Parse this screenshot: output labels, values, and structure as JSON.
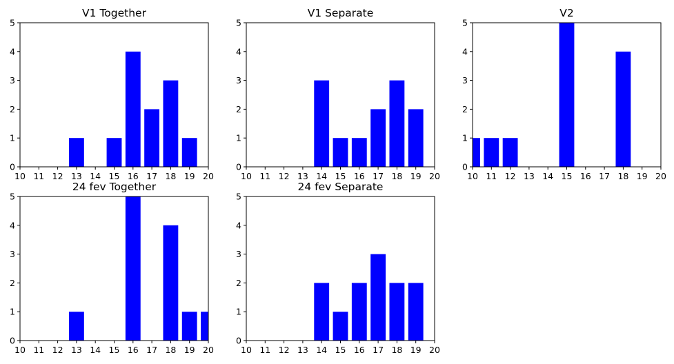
{
  "chart_data": [
    {
      "type": "bar",
      "title": "V1 Together",
      "x": [
        13,
        15,
        16,
        17,
        18,
        19
      ],
      "values": [
        1,
        1,
        4,
        2,
        3,
        1
      ],
      "xlim": [
        10,
        20
      ],
      "ylim": [
        0,
        5
      ],
      "xticks": [
        "10",
        "11",
        "12",
        "13",
        "14",
        "15",
        "16",
        "17",
        "18",
        "19",
        "20"
      ],
      "yticks": [
        "0",
        "1",
        "2",
        "3",
        "4",
        "5"
      ],
      "bar_color": "#0000ff",
      "grid": false
    },
    {
      "type": "bar",
      "title": "V1 Separate",
      "x": [
        14,
        15,
        16,
        17,
        18,
        19
      ],
      "values": [
        3,
        1,
        1,
        2,
        3,
        2
      ],
      "xlim": [
        10,
        20
      ],
      "ylim": [
        0,
        5
      ],
      "xticks": [
        "10",
        "11",
        "12",
        "13",
        "14",
        "15",
        "16",
        "17",
        "18",
        "19",
        "20"
      ],
      "yticks": [
        "0",
        "1",
        "2",
        "3",
        "4",
        "5"
      ],
      "bar_color": "#0000ff",
      "grid": false
    },
    {
      "type": "bar",
      "title": "V2",
      "x": [
        10,
        11,
        12,
        15,
        18
      ],
      "values": [
        1,
        1,
        1,
        5,
        4
      ],
      "xlim": [
        10,
        20
      ],
      "ylim": [
        0,
        5
      ],
      "xticks": [
        "10",
        "11",
        "12",
        "13",
        "14",
        "15",
        "16",
        "17",
        "18",
        "19",
        "20"
      ],
      "yticks": [
        "0",
        "1",
        "2",
        "3",
        "4",
        "5"
      ],
      "bar_color": "#0000ff",
      "grid": false
    },
    {
      "type": "bar",
      "title": "24 fev Together",
      "x": [
        13,
        16,
        18,
        19,
        20
      ],
      "values": [
        1,
        5,
        4,
        1,
        1
      ],
      "xlim": [
        10,
        20
      ],
      "ylim": [
        0,
        5
      ],
      "xticks": [
        "10",
        "11",
        "12",
        "13",
        "14",
        "15",
        "16",
        "17",
        "18",
        "19",
        "20"
      ],
      "yticks": [
        "0",
        "1",
        "2",
        "3",
        "4",
        "5"
      ],
      "bar_color": "#0000ff",
      "grid": false
    },
    {
      "type": "bar",
      "title": "24 fev Separate",
      "x": [
        14,
        15,
        16,
        17,
        18,
        19
      ],
      "values": [
        2,
        1,
        2,
        3,
        2,
        2
      ],
      "xlim": [
        10,
        20
      ],
      "ylim": [
        0,
        5
      ],
      "xticks": [
        "10",
        "11",
        "12",
        "13",
        "14",
        "15",
        "16",
        "17",
        "18",
        "19",
        "20"
      ],
      "yticks": [
        "0",
        "1",
        "2",
        "3",
        "4",
        "5"
      ],
      "bar_color": "#0000ff",
      "grid": false
    }
  ]
}
